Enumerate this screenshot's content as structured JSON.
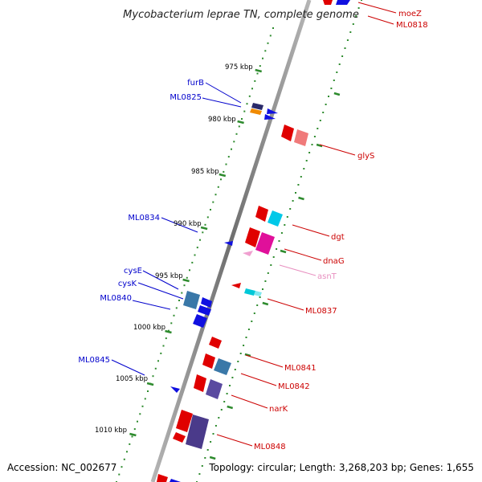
{
  "title": "Mycobacterium leprae TN, complete genome",
  "footer": {
    "accession": "Accession: NC_002677",
    "topology": "Topology: circular; Length: 3,268,203 bp; Genes: 1,655"
  },
  "colors": {
    "left_label": "#0000cc",
    "right_label": "#cc0000",
    "rna_label": "#e890c0",
    "backbone": "#8a8a8a",
    "ruler_dot": "#2e8b2e"
  },
  "ticks": [
    "975 kbp",
    "980 kbp",
    "985 kbp",
    "990 kbp",
    "995 kbp",
    "1000 kbp",
    "1005 kbp",
    "1010 kbp"
  ],
  "left_labels": [
    "furB",
    "ML0825",
    "ML0834",
    "cysE",
    "cysK",
    "ML0840",
    "ML0845"
  ],
  "right_labels": [
    "moeZ",
    "ML0818",
    "glyS",
    "dgt",
    "dnaG",
    "asnT",
    "ML0837",
    "ML0841",
    "ML0842",
    "narK",
    "ML0848"
  ]
}
